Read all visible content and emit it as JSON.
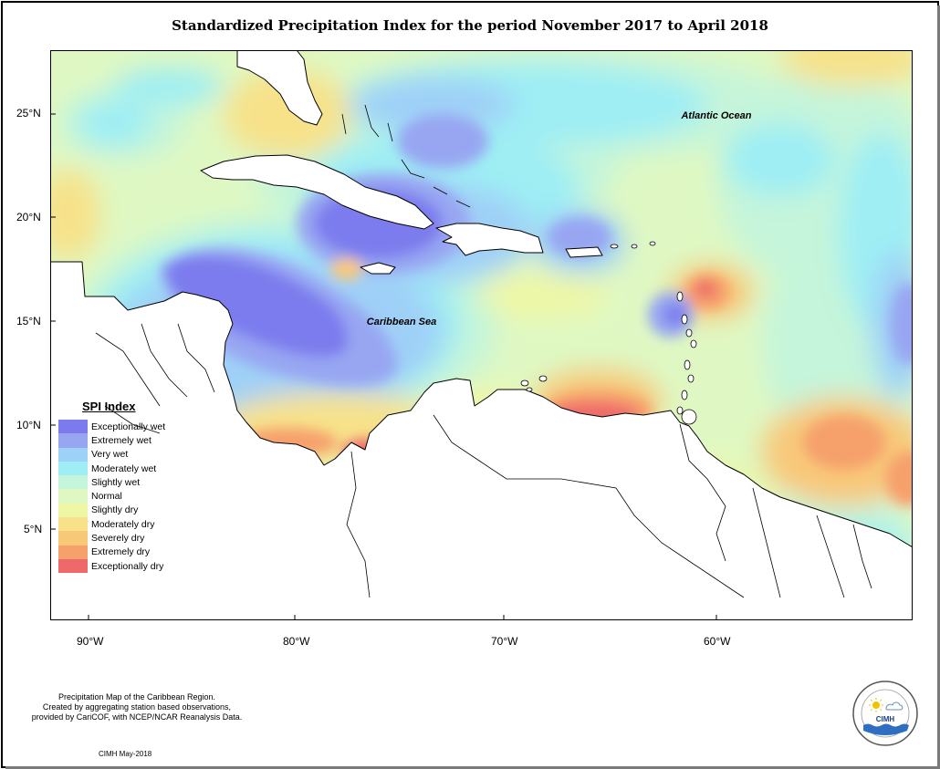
{
  "title": "Standardized Precipitation Index for the period November 2017 to April 2018",
  "map_labels": {
    "atlantic": "Atlantic Ocean",
    "caribbean": "Caribbean Sea"
  },
  "axes": {
    "y_ticks": [
      "25°N",
      "20°N",
      "15°N",
      "10°N",
      "5°N"
    ],
    "x_ticks": [
      "90°W",
      "80°W",
      "70°W",
      "60°W"
    ]
  },
  "legend": {
    "title": "SPI Index",
    "items": [
      {
        "label": "Exceptionally wet",
        "color": "#7b7bee"
      },
      {
        "label": "Extremely wet",
        "color": "#98a6f2"
      },
      {
        "label": "Very wet",
        "color": "#9fd0f7"
      },
      {
        "label": "Moderately wet",
        "color": "#9eeef4"
      },
      {
        "label": "Slightly wet",
        "color": "#c5f5da"
      },
      {
        "label": "Normal",
        "color": "#dff8c3"
      },
      {
        "label": "Slightly dry",
        "color": "#eef7a6"
      },
      {
        "label": "Moderately dry",
        "color": "#f7e28a"
      },
      {
        "label": "Severely dry",
        "color": "#f8c879"
      },
      {
        "label": "Extremely dry",
        "color": "#f6a06c"
      },
      {
        "label": "Exceptionally dry",
        "color": "#ee6a6a"
      }
    ]
  },
  "footer": {
    "note_line1": "Precipitation Map of the Caribbean Region.",
    "note_line2": "Created by aggregating station based observations,",
    "note_line3": "provided by CariCOF, with NCEP/NCAR Reanalysis Data.",
    "credit": "CIMH May-2018"
  },
  "logo": {
    "text": "CIMH"
  }
}
